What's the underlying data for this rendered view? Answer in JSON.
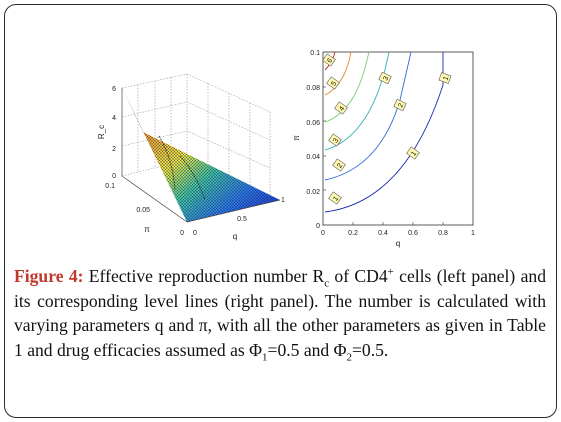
{
  "figure": {
    "left_panel": {
      "zlabel": "R_c",
      "xlabel": "q",
      "ylabel": "π",
      "z_ticks": [
        "0",
        "2",
        "4",
        "6"
      ],
      "pi_ticks": [
        "0",
        "0.05",
        "0.1"
      ],
      "q_ticks": [
        "0",
        "0.5",
        "1"
      ]
    },
    "right_panel": {
      "xlabel": "q",
      "ylabel": "π",
      "x_ticks": [
        "0",
        "0.2",
        "0.4",
        "0.6",
        "0.8",
        "1"
      ],
      "y_ticks": [
        "0",
        "0.02",
        "0.04",
        "0.06",
        "0.08",
        "0.1"
      ],
      "level_labels": [
        "1",
        "1",
        "1",
        "1",
        "2",
        "2",
        "3",
        "3",
        "4",
        "5",
        "6"
      ]
    }
  },
  "caption": {
    "label": "Figure 4:",
    "text_part1": "Effective reproduction number R",
    "sub_c": "c",
    "text_part2": " of CD4",
    "sup_plus": "+",
    "text_part3": " cells (left panel) and its corresponding level lines (right panel). The number is calculated with varying parameters q and π, with all the other parameters as given in Table 1 and drug efficacies assumed as Φ",
    "sub_1": "1",
    "text_part4": "=0.5 and Φ",
    "sub_2": "2",
    "text_part5": "=0.5."
  }
}
